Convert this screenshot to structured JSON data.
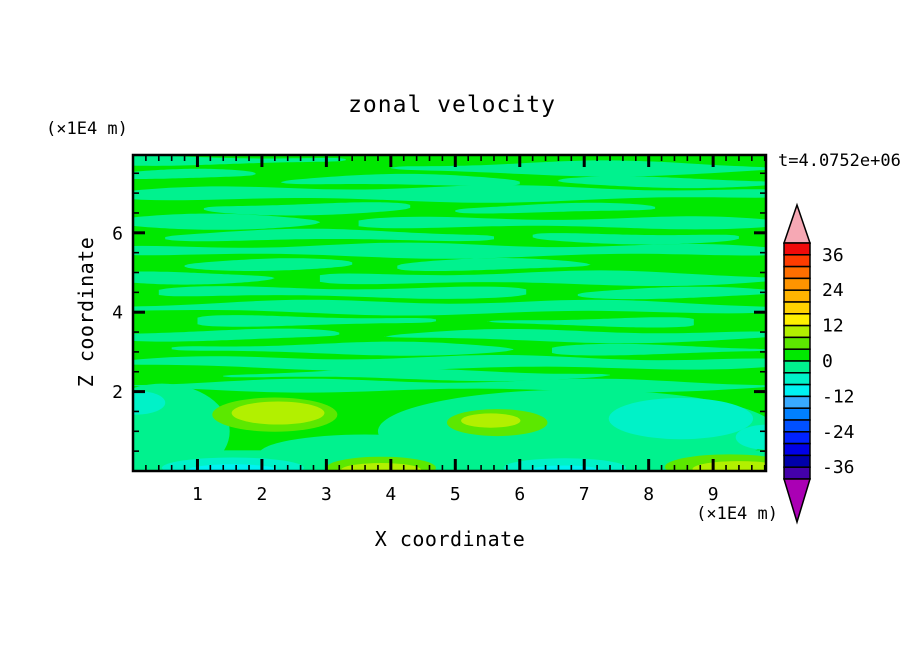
{
  "figure": {
    "title": "zonal velocity",
    "time_annotation": "t=4.0752e+06",
    "background_color": "#FFFFFF"
  },
  "axes": {
    "x": {
      "label": "X coordinate",
      "unit": "(×1E4 m)",
      "major_ticks": [
        1,
        2,
        3,
        4,
        5,
        6,
        7,
        8,
        9
      ],
      "minor_step": 0.2,
      "min": 0,
      "max": 9.82
    },
    "z": {
      "label": "Z coordinate",
      "unit": "(×1E4 m)",
      "major_ticks": [
        2,
        4,
        6
      ],
      "minor_step": 0.5,
      "min": 0,
      "max": 7.96
    }
  },
  "colorbar": {
    "tick_labels": [
      "36",
      "24",
      "12",
      "0",
      "-12",
      "-24",
      "-36"
    ],
    "tick_values": [
      36,
      24,
      12,
      0,
      -12,
      -24,
      -36
    ],
    "level_min": -40,
    "level_max": 40,
    "level_step": 4,
    "colors_top_to_bottom": [
      "#F00A0A",
      "#FF3C00",
      "#FF6E00",
      "#FF9400",
      "#FFB400",
      "#FFD200",
      "#FFF000",
      "#B2F000",
      "#5CE800",
      "#00E800",
      "#00F28E",
      "#00F2C8",
      "#00F2F2",
      "#38AAFF",
      "#0080FF",
      "#0050FF",
      "#0022FF",
      "#0000E6",
      "#0000AA",
      "#4400AA"
    ],
    "over_color": "#F6A8B4",
    "under_color": "#AA00B4"
  },
  "chart_data": {
    "type": "filled_contour",
    "title": "zonal velocity",
    "xlabel": "X coordinate",
    "ylabel": "Z coordinate",
    "x_unit": "(×1E4 m)",
    "z_unit": "(×1E4 m)",
    "time": "t=4.0752e+06",
    "x_range": [
      0,
      9.82
    ],
    "z_range": [
      0,
      7.96
    ],
    "x_major_ticks": [
      1,
      2,
      3,
      4,
      5,
      6,
      7,
      8,
      9
    ],
    "z_major_ticks": [
      2,
      4,
      6
    ],
    "contour_interval": 4,
    "value_range": [
      -40,
      40
    ],
    "colorbar_tick_values": [
      36,
      24,
      12,
      0,
      -12,
      -24,
      -36
    ],
    "legend_position": "right",
    "grid": false,
    "field_colors": {
      "green": "#00E800",
      "spring": "#00F28E",
      "aqua": "#00F2C8",
      "cyan": "#00F2F2",
      "lime": "#5CE800",
      "chartreuse": "#B2F000"
    },
    "field_description": "background band 0..4 m/s (green); wavy horizontal streaks of -4..0 m/s (spring green) above z=2; stronger anomalies (-16..12 m/s) below z=2",
    "stripes_spring": [
      [
        7.82,
        0.22,
        -0.3,
        3.3,
        1
      ],
      [
        7.62,
        0.3,
        4.0,
        10.1,
        2
      ],
      [
        7.45,
        0.22,
        -0.3,
        1.9,
        3
      ],
      [
        7.3,
        0.26,
        2.3,
        6.0,
        4
      ],
      [
        7.28,
        0.2,
        6.6,
        10.1,
        5
      ],
      [
        6.98,
        0.34,
        -0.3,
        10.1,
        6
      ],
      [
        6.62,
        0.26,
        1.1,
        4.3,
        7
      ],
      [
        6.6,
        0.22,
        5.0,
        8.1,
        8
      ],
      [
        6.28,
        0.3,
        -0.3,
        2.9,
        9
      ],
      [
        6.25,
        0.26,
        3.5,
        10.1,
        10
      ],
      [
        5.92,
        0.26,
        0.5,
        5.6,
        11
      ],
      [
        5.88,
        0.24,
        6.2,
        9.4,
        12
      ],
      [
        5.55,
        0.3,
        -0.3,
        10.1,
        13
      ],
      [
        5.2,
        0.22,
        0.8,
        3.4,
        14
      ],
      [
        5.18,
        0.26,
        4.1,
        7.1,
        15
      ],
      [
        4.88,
        0.26,
        -0.3,
        2.2,
        16
      ],
      [
        4.85,
        0.3,
        2.9,
        10.1,
        17
      ],
      [
        4.5,
        0.26,
        0.4,
        6.1,
        18
      ],
      [
        4.48,
        0.22,
        6.9,
        10.1,
        19
      ],
      [
        4.12,
        0.3,
        -0.3,
        10.1,
        20
      ],
      [
        3.78,
        0.26,
        1.0,
        4.7,
        21
      ],
      [
        3.75,
        0.22,
        5.5,
        8.7,
        22
      ],
      [
        3.42,
        0.26,
        -0.3,
        3.2,
        23
      ],
      [
        3.4,
        0.26,
        3.9,
        10.1,
        24
      ],
      [
        3.08,
        0.26,
        0.6,
        5.9,
        25
      ],
      [
        3.05,
        0.22,
        6.5,
        10.1,
        26
      ],
      [
        2.72,
        0.3,
        -0.3,
        10.1,
        27
      ],
      [
        2.42,
        0.22,
        1.4,
        7.4,
        28
      ],
      [
        2.15,
        0.26,
        -0.3,
        10.1,
        29
      ]
    ],
    "bottom_spring_regions": [
      {
        "shape": "rect",
        "x0": -0.3,
        "x1": 10.1,
        "z0": -0.2,
        "z1": 0.52
      },
      {
        "shape": "ellipse",
        "cx": 0.45,
        "cz": 1.0,
        "rx": 1.05,
        "rz": 1.2
      },
      {
        "shape": "ellipse",
        "cx": 6.9,
        "cz": 1.0,
        "rx": 3.1,
        "rz": 1.05
      },
      {
        "shape": "ellipse",
        "cx": 3.6,
        "cz": 0.42,
        "rx": 1.65,
        "rz": 0.5
      }
    ],
    "bottom_patches": [
      {
        "color": "aqua",
        "cx": 0.05,
        "cz": 1.72,
        "rx": 0.45,
        "rz": 0.3
      },
      {
        "color": "aqua",
        "cx": 1.55,
        "cz": 0.08,
        "rx": 1.1,
        "rz": 0.26
      },
      {
        "color": "aqua",
        "cx": 6.7,
        "cz": 0.08,
        "rx": 0.95,
        "rz": 0.24
      },
      {
        "color": "aqua",
        "cx": 8.5,
        "cz": 1.32,
        "rx": 1.12,
        "rz": 0.52
      },
      {
        "color": "aqua",
        "cx": 9.85,
        "cz": 0.85,
        "rx": 0.5,
        "rz": 0.32
      },
      {
        "color": "cyan",
        "cx": 1.55,
        "cz": 0.02,
        "rx": 0.7,
        "rz": 0.15
      },
      {
        "color": "cyan",
        "cx": 6.7,
        "cz": 0.02,
        "rx": 0.55,
        "rz": 0.12
      },
      {
        "color": "lime",
        "cx": 2.2,
        "cz": 1.42,
        "rx": 0.97,
        "rz": 0.43
      },
      {
        "color": "chartreuse",
        "cx": 2.25,
        "cz": 1.46,
        "rx": 0.72,
        "rz": 0.29
      },
      {
        "color": "lime",
        "cx": 5.65,
        "cz": 1.22,
        "rx": 0.78,
        "rz": 0.34
      },
      {
        "color": "chartreuse",
        "cx": 5.55,
        "cz": 1.27,
        "rx": 0.46,
        "rz": 0.18
      },
      {
        "color": "lime",
        "cx": 3.85,
        "cz": 0.08,
        "rx": 0.85,
        "rz": 0.28
      },
      {
        "color": "chartreuse",
        "cx": 3.85,
        "cz": 0.03,
        "rx": 0.62,
        "rz": 0.17
      },
      {
        "color": "lime",
        "cx": 9.25,
        "cz": 0.1,
        "rx": 1.0,
        "rz": 0.32
      },
      {
        "color": "chartreuse",
        "cx": 9.4,
        "cz": 0.05,
        "rx": 0.72,
        "rz": 0.2
      }
    ]
  }
}
